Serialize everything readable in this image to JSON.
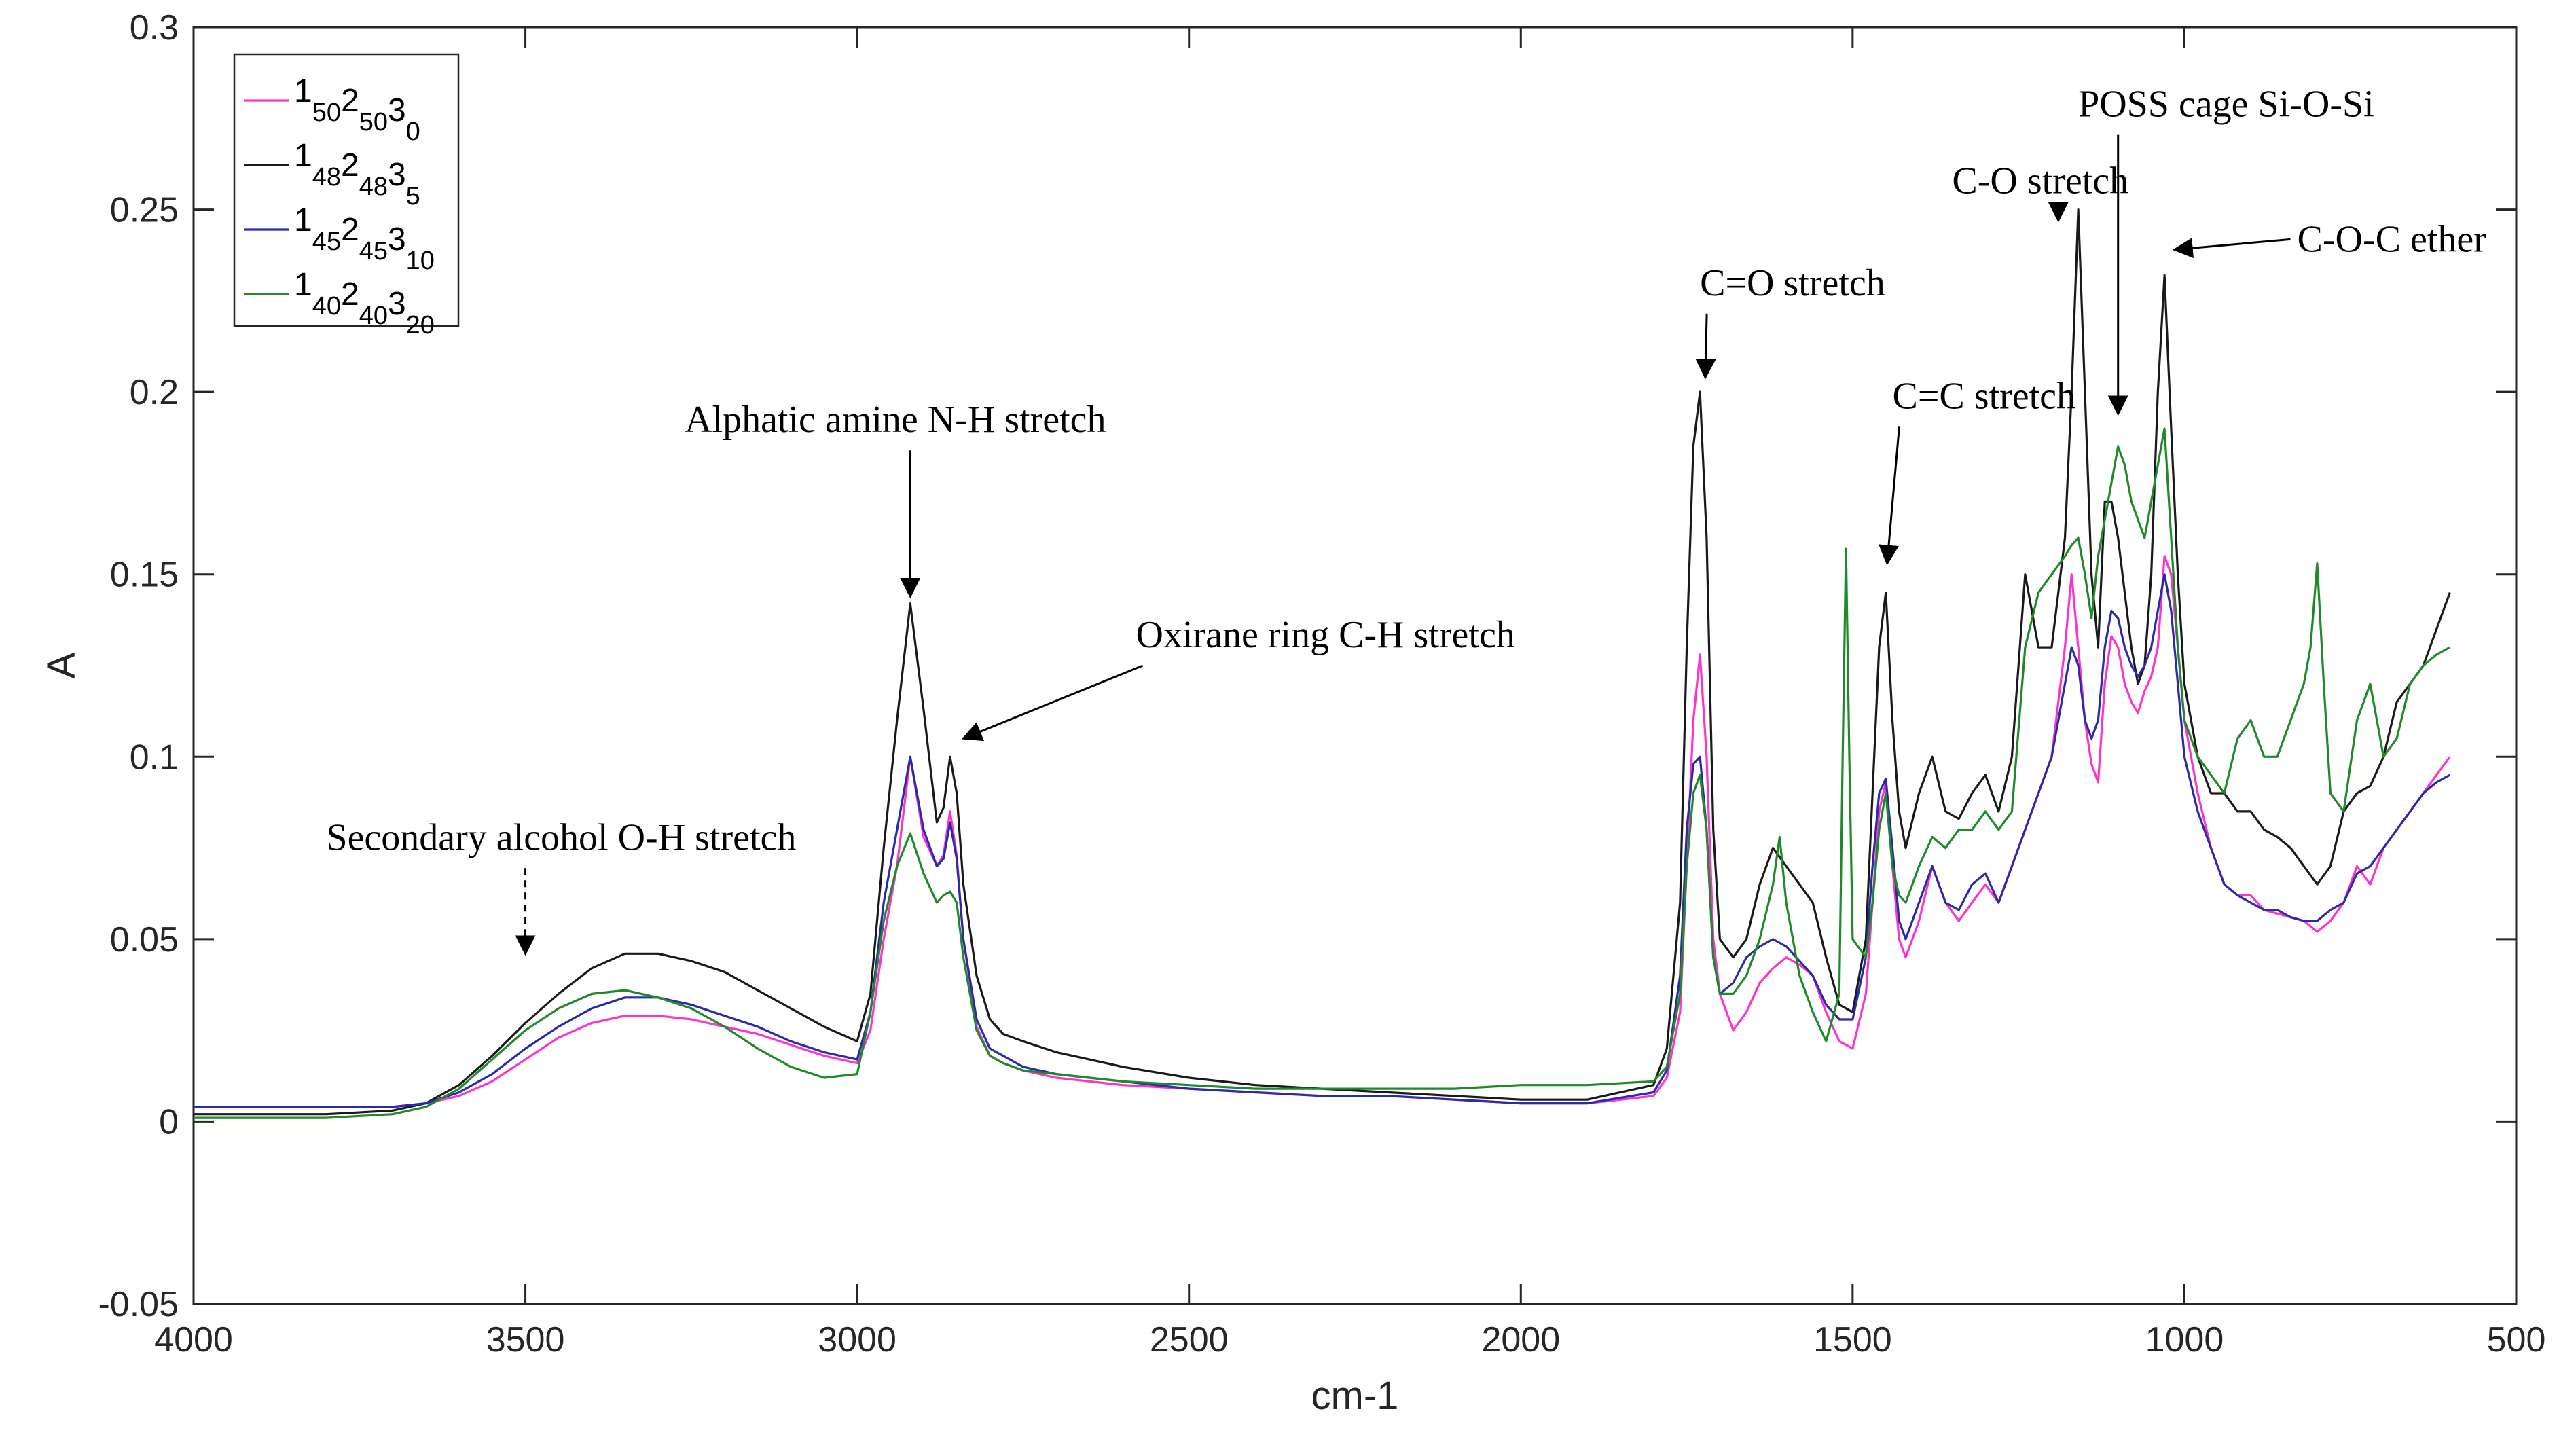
{
  "chart_data": {
    "type": "line",
    "title": "",
    "xlabel": "cm-1",
    "ylabel": "A",
    "xlim": [
      4000,
      500
    ],
    "x_reversed": true,
    "ylim": [
      -0.05,
      0.3
    ],
    "x_ticks": [
      4000,
      3500,
      3000,
      2500,
      2000,
      1500,
      1000,
      500
    ],
    "x_tick_labels": [
      "4000",
      "3500",
      "3000",
      "2500",
      "2000",
      "1500",
      "1000",
      "500"
    ],
    "y_ticks": [
      -0.05,
      0,
      0.05,
      0.1,
      0.15,
      0.2,
      0.25,
      0.3
    ],
    "y_tick_labels": [
      "-0.05",
      "0",
      "0.05",
      "0.1",
      "0.15",
      "0.2",
      "0.25",
      "0.3"
    ],
    "grid": false,
    "legend_position": "top-left",
    "series": [
      {
        "name": "1_50 2_50 3_0",
        "label_parts": [
          [
            "1",
            "50"
          ],
          [
            "2",
            "50"
          ],
          [
            "3",
            "0"
          ]
        ],
        "color": "#ff33cc",
        "x": [
          4000,
          3800,
          3700,
          3650,
          3600,
          3550,
          3500,
          3450,
          3400,
          3350,
          3300,
          3250,
          3200,
          3150,
          3100,
          3050,
          3000,
          2980,
          2960,
          2940,
          2920,
          2900,
          2880,
          2870,
          2860,
          2850,
          2840,
          2820,
          2800,
          2780,
          2750,
          2700,
          2650,
          2600,
          2500,
          2400,
          2300,
          2200,
          2100,
          2000,
          1900,
          1800,
          1780,
          1760,
          1750,
          1740,
          1730,
          1720,
          1710,
          1700,
          1680,
          1660,
          1640,
          1620,
          1600,
          1580,
          1560,
          1540,
          1520,
          1500,
          1480,
          1470,
          1460,
          1450,
          1440,
          1430,
          1420,
          1400,
          1380,
          1360,
          1340,
          1320,
          1300,
          1280,
          1260,
          1240,
          1220,
          1200,
          1180,
          1170,
          1160,
          1150,
          1140,
          1130,
          1120,
          1110,
          1100,
          1090,
          1080,
          1070,
          1060,
          1050,
          1040,
          1030,
          1020,
          1010,
          1000,
          980,
          960,
          940,
          920,
          900,
          880,
          860,
          840,
          820,
          800,
          780,
          760,
          740,
          720,
          700,
          680,
          660,
          640,
          620,
          600
        ],
        "y": [
          0.004,
          0.004,
          0.004,
          0.005,
          0.007,
          0.011,
          0.017,
          0.023,
          0.027,
          0.029,
          0.029,
          0.028,
          0.026,
          0.024,
          0.021,
          0.018,
          0.016,
          0.025,
          0.05,
          0.07,
          0.1,
          0.078,
          0.07,
          0.073,
          0.085,
          0.073,
          0.05,
          0.026,
          0.018,
          0.016,
          0.014,
          0.012,
          0.011,
          0.01,
          0.009,
          0.008,
          0.007,
          0.007,
          0.006,
          0.005,
          0.005,
          0.007,
          0.012,
          0.03,
          0.07,
          0.11,
          0.128,
          0.1,
          0.05,
          0.035,
          0.025,
          0.03,
          0.038,
          0.042,
          0.045,
          0.043,
          0.04,
          0.03,
          0.022,
          0.02,
          0.035,
          0.06,
          0.085,
          0.093,
          0.07,
          0.05,
          0.045,
          0.055,
          0.07,
          0.06,
          0.055,
          0.06,
          0.065,
          0.06,
          0.07,
          0.08,
          0.09,
          0.1,
          0.13,
          0.15,
          0.13,
          0.11,
          0.098,
          0.093,
          0.12,
          0.133,
          0.13,
          0.12,
          0.115,
          0.112,
          0.118,
          0.122,
          0.13,
          0.155,
          0.15,
          0.13,
          0.11,
          0.09,
          0.075,
          0.065,
          0.062,
          0.062,
          0.058,
          0.057,
          0.056,
          0.055,
          0.052,
          0.055,
          0.06,
          0.07,
          0.065,
          0.075,
          0.08,
          0.085,
          0.09,
          0.095,
          0.1
        ]
      },
      {
        "name": "1_48 2_48 3_5",
        "label_parts": [
          [
            "1",
            "48"
          ],
          [
            "2",
            "48"
          ],
          [
            "3",
            "5"
          ]
        ],
        "color": "#1a1a1a",
        "x": [
          4000,
          3800,
          3700,
          3650,
          3600,
          3550,
          3500,
          3450,
          3400,
          3350,
          3300,
          3250,
          3200,
          3150,
          3100,
          3050,
          3000,
          2980,
          2960,
          2940,
          2920,
          2900,
          2880,
          2870,
          2860,
          2850,
          2840,
          2820,
          2800,
          2780,
          2750,
          2700,
          2650,
          2600,
          2500,
          2400,
          2300,
          2200,
          2100,
          2000,
          1900,
          1800,
          1780,
          1760,
          1750,
          1740,
          1730,
          1720,
          1710,
          1700,
          1680,
          1660,
          1640,
          1620,
          1600,
          1580,
          1560,
          1540,
          1520,
          1500,
          1480,
          1470,
          1460,
          1450,
          1440,
          1430,
          1420,
          1400,
          1380,
          1360,
          1340,
          1320,
          1300,
          1280,
          1260,
          1240,
          1220,
          1200,
          1180,
          1170,
          1160,
          1150,
          1140,
          1130,
          1120,
          1110,
          1100,
          1090,
          1080,
          1070,
          1060,
          1050,
          1040,
          1030,
          1020,
          1010,
          1000,
          980,
          960,
          940,
          920,
          900,
          880,
          860,
          840,
          820,
          800,
          780,
          760,
          740,
          720,
          700,
          680,
          660,
          640,
          620,
          600
        ],
        "y": [
          0.002,
          0.002,
          0.003,
          0.005,
          0.01,
          0.018,
          0.027,
          0.035,
          0.042,
          0.046,
          0.046,
          0.044,
          0.041,
          0.036,
          0.031,
          0.026,
          0.022,
          0.035,
          0.075,
          0.11,
          0.142,
          0.113,
          0.082,
          0.086,
          0.1,
          0.09,
          0.065,
          0.04,
          0.028,
          0.024,
          0.022,
          0.019,
          0.017,
          0.015,
          0.012,
          0.01,
          0.009,
          0.008,
          0.007,
          0.006,
          0.006,
          0.01,
          0.02,
          0.06,
          0.13,
          0.185,
          0.2,
          0.16,
          0.08,
          0.05,
          0.045,
          0.05,
          0.065,
          0.075,
          0.07,
          0.065,
          0.06,
          0.045,
          0.032,
          0.03,
          0.05,
          0.09,
          0.13,
          0.145,
          0.11,
          0.085,
          0.075,
          0.09,
          0.1,
          0.085,
          0.083,
          0.09,
          0.095,
          0.085,
          0.1,
          0.15,
          0.13,
          0.13,
          0.16,
          0.2,
          0.25,
          0.2,
          0.15,
          0.13,
          0.17,
          0.17,
          0.16,
          0.145,
          0.13,
          0.12,
          0.125,
          0.15,
          0.2,
          0.232,
          0.19,
          0.15,
          0.12,
          0.1,
          0.09,
          0.09,
          0.085,
          0.085,
          0.08,
          0.078,
          0.075,
          0.07,
          0.065,
          0.07,
          0.085,
          0.09,
          0.092,
          0.1,
          0.115,
          0.12,
          0.125,
          0.135,
          0.145
        ]
      },
      {
        "name": "1_45 2_45 3_10",
        "label_parts": [
          [
            "1",
            "45"
          ],
          [
            "2",
            "45"
          ],
          [
            "3",
            "10"
          ]
        ],
        "color": "#2a2aaa",
        "x": [
          4000,
          3800,
          3700,
          3650,
          3600,
          3550,
          3500,
          3450,
          3400,
          3350,
          3300,
          3250,
          3200,
          3150,
          3100,
          3050,
          3000,
          2980,
          2960,
          2940,
          2920,
          2900,
          2880,
          2870,
          2860,
          2850,
          2840,
          2820,
          2800,
          2780,
          2750,
          2700,
          2650,
          2600,
          2500,
          2400,
          2300,
          2200,
          2100,
          2000,
          1900,
          1800,
          1780,
          1760,
          1750,
          1740,
          1730,
          1720,
          1710,
          1700,
          1680,
          1660,
          1640,
          1620,
          1600,
          1580,
          1560,
          1540,
          1520,
          1500,
          1480,
          1470,
          1460,
          1450,
          1440,
          1430,
          1420,
          1400,
          1380,
          1360,
          1340,
          1320,
          1300,
          1280,
          1260,
          1240,
          1220,
          1200,
          1180,
          1170,
          1160,
          1150,
          1140,
          1130,
          1120,
          1110,
          1100,
          1090,
          1080,
          1070,
          1060,
          1050,
          1040,
          1030,
          1020,
          1010,
          1000,
          980,
          960,
          940,
          920,
          900,
          880,
          860,
          840,
          820,
          800,
          780,
          760,
          740,
          720,
          700,
          680,
          660,
          640,
          620,
          600
        ],
        "y": [
          0.004,
          0.004,
          0.004,
          0.005,
          0.008,
          0.013,
          0.02,
          0.026,
          0.031,
          0.034,
          0.034,
          0.032,
          0.029,
          0.026,
          0.022,
          0.019,
          0.017,
          0.03,
          0.06,
          0.08,
          0.1,
          0.08,
          0.07,
          0.072,
          0.082,
          0.072,
          0.05,
          0.028,
          0.02,
          0.018,
          0.015,
          0.013,
          0.012,
          0.011,
          0.009,
          0.008,
          0.007,
          0.007,
          0.006,
          0.005,
          0.005,
          0.008,
          0.014,
          0.04,
          0.08,
          0.098,
          0.1,
          0.08,
          0.045,
          0.035,
          0.038,
          0.045,
          0.048,
          0.05,
          0.048,
          0.044,
          0.04,
          0.032,
          0.028,
          0.028,
          0.045,
          0.07,
          0.09,
          0.094,
          0.075,
          0.055,
          0.05,
          0.06,
          0.07,
          0.06,
          0.058,
          0.065,
          0.068,
          0.06,
          0.07,
          0.08,
          0.09,
          0.1,
          0.12,
          0.13,
          0.125,
          0.11,
          0.105,
          0.11,
          0.13,
          0.14,
          0.138,
          0.13,
          0.125,
          0.122,
          0.125,
          0.13,
          0.14,
          0.15,
          0.14,
          0.12,
          0.1,
          0.085,
          0.075,
          0.065,
          0.062,
          0.06,
          0.058,
          0.058,
          0.056,
          0.055,
          0.055,
          0.058,
          0.06,
          0.068,
          0.07,
          0.075,
          0.08,
          0.085,
          0.09,
          0.093,
          0.095
        ]
      },
      {
        "name": "1_40 2_40 3_20",
        "label_parts": [
          [
            "1",
            "40"
          ],
          [
            "2",
            "40"
          ],
          [
            "3",
            "20"
          ]
        ],
        "color": "#1f8a2a",
        "x": [
          4000,
          3800,
          3700,
          3650,
          3600,
          3550,
          3500,
          3450,
          3400,
          3350,
          3300,
          3250,
          3200,
          3150,
          3100,
          3050,
          3000,
          2980,
          2960,
          2940,
          2920,
          2900,
          2880,
          2870,
          2860,
          2850,
          2840,
          2820,
          2800,
          2780,
          2750,
          2700,
          2650,
          2600,
          2500,
          2400,
          2300,
          2200,
          2100,
          2000,
          1900,
          1800,
          1780,
          1760,
          1750,
          1740,
          1730,
          1720,
          1710,
          1700,
          1680,
          1660,
          1640,
          1620,
          1610,
          1600,
          1580,
          1560,
          1540,
          1520,
          1515,
          1510,
          1505,
          1500,
          1480,
          1470,
          1460,
          1450,
          1440,
          1430,
          1420,
          1400,
          1380,
          1360,
          1340,
          1320,
          1300,
          1280,
          1260,
          1240,
          1220,
          1200,
          1180,
          1170,
          1160,
          1150,
          1140,
          1130,
          1120,
          1110,
          1100,
          1090,
          1080,
          1070,
          1060,
          1050,
          1040,
          1030,
          1020,
          1010,
          1000,
          980,
          960,
          940,
          920,
          900,
          880,
          860,
          840,
          820,
          810,
          800,
          790,
          780,
          760,
          740,
          720,
          700,
          680,
          660,
          640,
          620,
          600
        ],
        "y": [
          0.001,
          0.001,
          0.002,
          0.004,
          0.009,
          0.017,
          0.025,
          0.031,
          0.035,
          0.036,
          0.034,
          0.031,
          0.026,
          0.02,
          0.015,
          0.012,
          0.013,
          0.03,
          0.055,
          0.07,
          0.079,
          0.068,
          0.06,
          0.062,
          0.063,
          0.06,
          0.045,
          0.025,
          0.018,
          0.016,
          0.014,
          0.013,
          0.012,
          0.011,
          0.01,
          0.009,
          0.009,
          0.009,
          0.009,
          0.01,
          0.01,
          0.011,
          0.015,
          0.035,
          0.07,
          0.09,
          0.095,
          0.08,
          0.045,
          0.035,
          0.035,
          0.04,
          0.05,
          0.065,
          0.078,
          0.06,
          0.04,
          0.03,
          0.022,
          0.035,
          0.1,
          0.157,
          0.1,
          0.05,
          0.045,
          0.06,
          0.08,
          0.09,
          0.07,
          0.062,
          0.06,
          0.07,
          0.078,
          0.075,
          0.08,
          0.08,
          0.085,
          0.08,
          0.085,
          0.13,
          0.145,
          0.15,
          0.155,
          0.158,
          0.16,
          0.15,
          0.138,
          0.155,
          0.165,
          0.175,
          0.185,
          0.18,
          0.17,
          0.165,
          0.16,
          0.17,
          0.18,
          0.19,
          0.16,
          0.13,
          0.11,
          0.1,
          0.095,
          0.09,
          0.105,
          0.11,
          0.1,
          0.1,
          0.11,
          0.12,
          0.13,
          0.153,
          0.12,
          0.09,
          0.085,
          0.11,
          0.12,
          0.1,
          0.105,
          0.12,
          0.125,
          0.128,
          0.13
        ]
      }
    ],
    "annotations": [
      {
        "text": "Secondary alcohol O-H stretch",
        "x": 3800,
        "y": 0.0745,
        "arrow_to": [
          3500,
          0.046
        ],
        "dashed": true
      },
      {
        "text": "Alphatic amine N-H stretch",
        "x": 3260,
        "y": 0.189,
        "arrow_to": [
          2920,
          0.144
        ],
        "dashed": false
      },
      {
        "text": "Oxirane ring C-H stretch",
        "x": 2580,
        "y": 0.13,
        "arrow_to": [
          2840,
          0.105
        ],
        "dashed": false
      },
      {
        "text": "C=O stretch",
        "x": 1730,
        "y": 0.2265,
        "arrow_to": [
          1722,
          0.204
        ],
        "dashed": false
      },
      {
        "text": "C=C stretch",
        "x": 1440,
        "y": 0.1955,
        "arrow_to": [
          1448,
          0.153
        ],
        "dashed": false
      },
      {
        "text": "C-O stretch",
        "x": 1350,
        "y": 0.2545,
        "arrow_to": [
          1190,
          0.247
        ],
        "dashed": false
      },
      {
        "text": "POSS cage Si-O-Si",
        "x": 1160,
        "y": 0.2755,
        "arrow_to": [
          1100,
          0.194
        ],
        "dashed": false
      },
      {
        "text": "C-O-C ether",
        "x": 830,
        "y": 0.2385,
        "arrow_to": [
          1015,
          0.239
        ],
        "dashed": false
      }
    ]
  }
}
